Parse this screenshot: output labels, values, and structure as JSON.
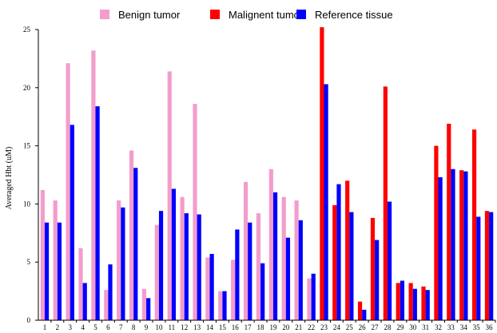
{
  "chart_data": {
    "type": "bar",
    "xlabel": "",
    "ylabel": "Averaged Hbt (uM)",
    "ylim": [
      0,
      25
    ],
    "yticks": [
      0,
      5,
      10,
      15,
      20,
      25
    ],
    "grid": false,
    "legend_position": "top",
    "categories": [
      "1",
      "2",
      "3",
      "4",
      "5",
      "6",
      "7",
      "8",
      "9",
      "10",
      "11",
      "12",
      "13",
      "14",
      "15",
      "16",
      "17",
      "18",
      "19",
      "20",
      "21",
      "22",
      "23",
      "24",
      "25",
      "26",
      "27",
      "28",
      "29",
      "30",
      "31",
      "32",
      "33",
      "34",
      "35",
      "36"
    ],
    "series": [
      {
        "name": "Benign tumor",
        "color": "#f39dcb",
        "values": [
          11.2,
          10.3,
          22.1,
          6.2,
          23.2,
          2.6,
          10.3,
          14.6,
          2.7,
          8.2,
          21.4,
          10.6,
          18.6,
          5.4,
          2.5,
          5.2,
          11.9,
          9.2,
          13.0,
          10.6,
          10.3,
          3.6,
          null,
          null,
          null,
          null,
          null,
          null,
          null,
          null,
          null,
          null,
          null,
          null,
          null,
          null
        ]
      },
      {
        "name": "Malignent tumor",
        "color": "#ff0000",
        "values": [
          null,
          null,
          null,
          null,
          null,
          null,
          null,
          null,
          null,
          null,
          null,
          null,
          null,
          null,
          null,
          null,
          null,
          null,
          null,
          null,
          null,
          null,
          25.2,
          9.9,
          12.0,
          1.6,
          8.8,
          20.1,
          3.2,
          3.2,
          2.9,
          15.0,
          16.9,
          12.9,
          16.4,
          9.4
        ]
      },
      {
        "name": "Reference tissue",
        "color": "#0000ff",
        "values": [
          8.4,
          8.4,
          16.8,
          3.2,
          18.4,
          4.8,
          9.7,
          13.1,
          1.9,
          9.4,
          11.3,
          9.2,
          9.1,
          5.7,
          2.5,
          7.8,
          8.4,
          4.9,
          11.0,
          7.1,
          8.6,
          4.0,
          20.3,
          11.7,
          9.3,
          0.9,
          6.9,
          10.2,
          3.4,
          2.7,
          2.6,
          12.3,
          13.0,
          12.8,
          8.9,
          9.3
        ]
      }
    ]
  }
}
